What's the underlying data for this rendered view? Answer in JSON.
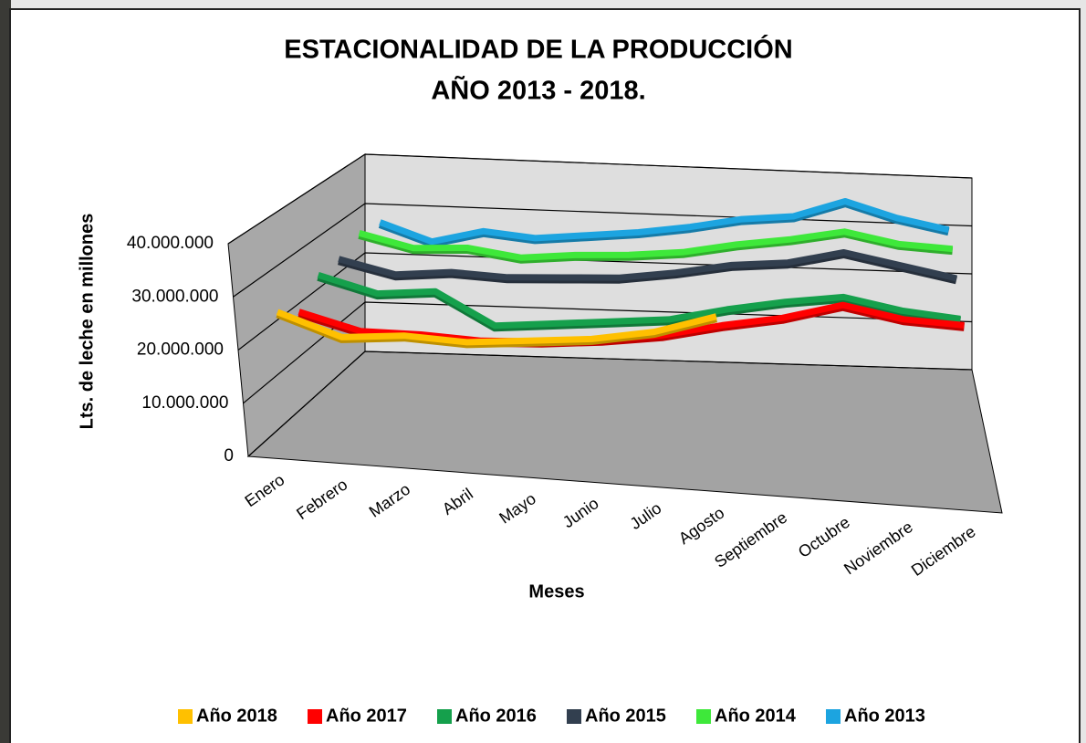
{
  "chart_data": {
    "type": "line3d",
    "title": "ESTACIONALIDAD DE LA PRODUCCIÓN",
    "subtitle": "AÑO 2013 - 2018.",
    "x_label": "Meses",
    "y_label": "Lts. de leche en millones",
    "categories": [
      "Enero",
      "Febrero",
      "Marzo",
      "Abril",
      "Mayo",
      "Junio",
      "Julio",
      "Agosto",
      "Septiembre",
      "Octubre",
      "Noviembre",
      "Diciembre"
    ],
    "ylim": [
      0,
      40000000
    ],
    "yticks": [
      0,
      {
        "value": 10000000,
        "label": "10.000.000"
      },
      {
        "value": 20000000,
        "label": "20.000.000"
      },
      {
        "value": 30000000,
        "label": "30.000.000"
      },
      {
        "value": 40000000,
        "label": "40.000.000"
      }
    ],
    "grid": true,
    "legend": "bottom",
    "series": [
      {
        "name": "Año 2018",
        "color": "#ffc000",
        "values": [
          26000000,
          22000000,
          23000000,
          22500000,
          23500000,
          24500000,
          26500000,
          30000000,
          null,
          null,
          null,
          null
        ]
      },
      {
        "name": "Año 2017",
        "color": "#ff0000",
        "values": [
          23000000,
          20000000,
          20000000,
          19500000,
          20000000,
          21000000,
          22500000,
          25000000,
          27000000,
          30000000,
          28000000,
          27500000
        ]
      },
      {
        "name": "Año 2016",
        "color": "#15a04c",
        "values": [
          27000000,
          24000000,
          25000000,
          19000000,
          20000000,
          21000000,
          22000000,
          24500000,
          26500000,
          28000000,
          26000000,
          25000000
        ]
      },
      {
        "name": "Año 2015",
        "color": "#323f4f",
        "values": [
          27000000,
          24500000,
          25500000,
          25000000,
          25500000,
          26000000,
          27500000,
          29500000,
          30500000,
          33000000,
          31000000,
          29000000
        ]
      },
      {
        "name": "Año 2014",
        "color": "#3ee83a",
        "values": [
          29000000,
          26500000,
          27000000,
          25500000,
          26500000,
          27000000,
          28000000,
          30000000,
          31500000,
          33500000,
          31500000,
          31000000
        ]
      },
      {
        "name": "Año 2013",
        "color": "#1ca4e0",
        "values": [
          28000000,
          24500000,
          27000000,
          26000000,
          27000000,
          28000000,
          29500000,
          31500000,
          32500000,
          36000000,
          33000000,
          31000000
        ]
      }
    ]
  }
}
